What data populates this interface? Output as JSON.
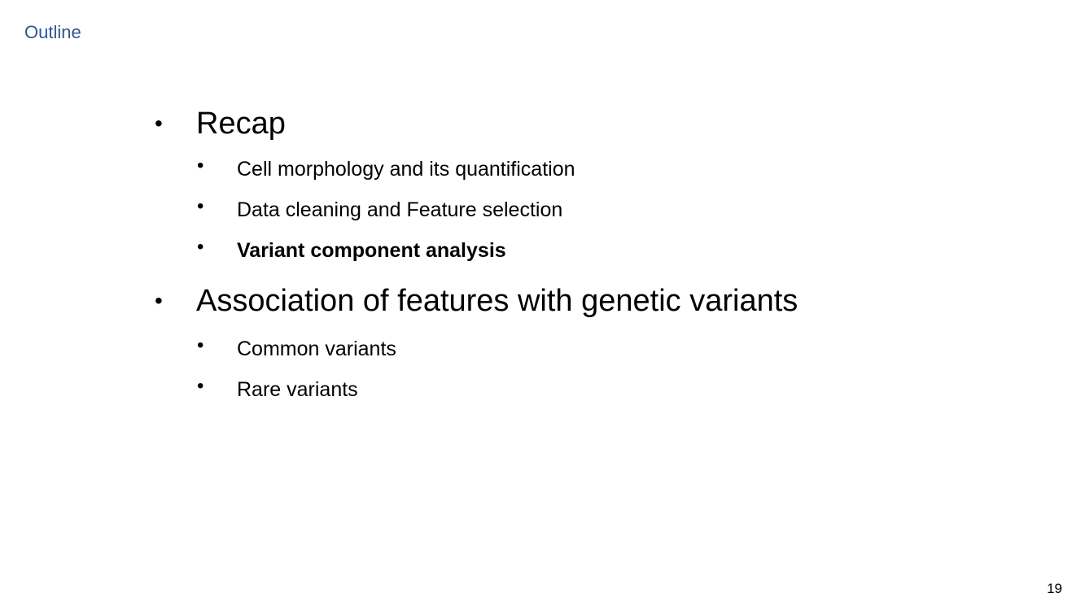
{
  "slide": {
    "title": "Outline",
    "page_number": "19",
    "title_color": "#2f5597"
  },
  "outline": {
    "bullet_glyph": "•",
    "items": [
      {
        "label": "Recap",
        "level": 1,
        "bold": false
      },
      {
        "label": "Cell morphology and its quantification",
        "level": 2,
        "bold": false
      },
      {
        "label": "Data cleaning and Feature selection",
        "level": 2,
        "bold": false
      },
      {
        "label": "Variant component analysis",
        "level": 2,
        "bold": true
      },
      {
        "label": "Association of features with genetic variants",
        "level": 1,
        "bold": false
      },
      {
        "label": "Common variants",
        "level": 2,
        "bold": false
      },
      {
        "label": "Rare variants",
        "level": 2,
        "bold": false
      }
    ]
  }
}
